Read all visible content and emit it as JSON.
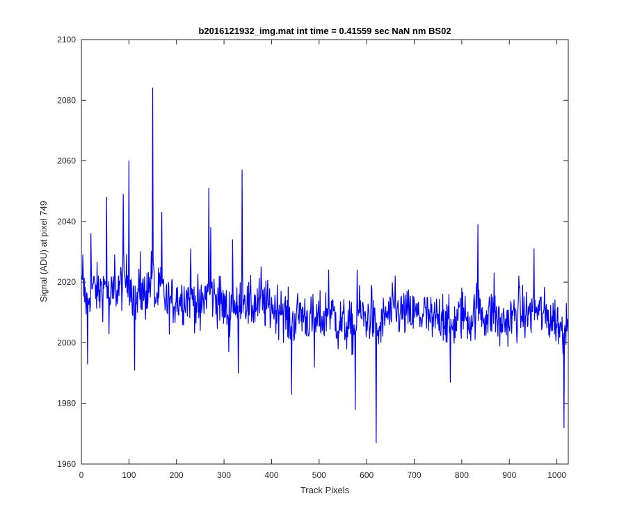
{
  "chart_data": {
    "type": "line",
    "title": "b2016121932_img.mat int time = 0.41559 sec  NaN nm BS02",
    "xlabel": "Track Pixels",
    "ylabel": "Signal (ADU) at pixel 749",
    "xlim": [
      0,
      1024
    ],
    "ylim": [
      1960,
      2100
    ],
    "xticks": [
      0,
      100,
      200,
      300,
      400,
      500,
      600,
      700,
      800,
      900,
      1000
    ],
    "yticks": [
      1960,
      1980,
      2000,
      2020,
      2040,
      2060,
      2080,
      2100
    ],
    "grid": false,
    "legend": "none",
    "line_color": "#0000ff",
    "series": [
      {
        "x_start": 1,
        "x_step": 1,
        "count": 1024,
        "sampled_x": [
          3,
          13,
          20,
          40,
          53,
          58,
          70,
          88,
          100,
          110,
          112,
          124,
          138,
          150,
          155,
          169,
          180,
          200,
          230,
          250,
          268,
          272,
          290,
          310,
          318,
          330,
          338,
          350,
          378,
          400,
          420,
          442,
          460,
          490,
          510,
          520,
          540,
          576,
          580,
          600,
          610,
          620,
          640,
          660,
          700,
          722,
          738,
          760,
          776,
          800,
          818,
          834,
          850,
          868,
          880,
          900,
          920,
          940,
          952,
          980,
          1000,
          1015,
          1020
        ],
        "sampled_y": [
          2029,
          1993,
          2036,
          2021,
          2048,
          2003,
          2029,
          2049,
          2060,
          2018,
          1991,
          2030,
          2023,
          2084,
          2015,
          2043,
          2010,
          2018,
          2031,
          2004,
          2051,
          2038,
          2022,
          1997,
          2034,
          1990,
          2057,
          2014,
          2025,
          2015,
          2017,
          1983,
          2011,
          1992,
          2003,
          2024,
          1998,
          1978,
          2024,
          2007,
          2019,
          1967,
          2012,
          2022,
          2014,
          2015,
          2002,
          2016,
          1987,
          2018,
          2004,
          2039,
          2009,
          2023,
          1999,
          2005,
          2022,
          2012,
          2031,
          2011,
          2005,
          1972,
          2013
        ]
      }
    ]
  }
}
